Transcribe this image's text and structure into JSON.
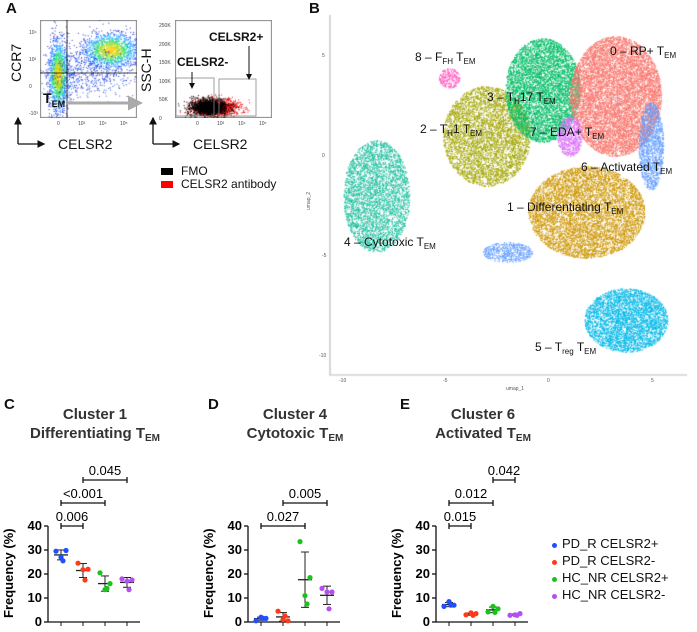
{
  "panels": {
    "A": "A",
    "B": "B",
    "C": "C",
    "D": "D",
    "E": "E"
  },
  "panelA": {
    "plot1": {
      "xlabel": "CELSR2",
      "ylabel": "CCR7",
      "gate_label": "T",
      "gate_sub": "EM",
      "xticks": [
        "0",
        "10³",
        "10⁴",
        "10⁵"
      ],
      "yticks": [
        "10⁴",
        "10³",
        "0",
        "-10³"
      ]
    },
    "plot2": {
      "xlabel": "CELSR2",
      "ylabel": "SSC-H",
      "gate_neg": "CELSR2-",
      "gate_pos": "CELSR2+",
      "xticks": [
        "0",
        "10³",
        "10⁴",
        "10⁵"
      ],
      "yticks": [
        "250K",
        "200K",
        "150K",
        "100K",
        "50K",
        "0"
      ]
    },
    "legend": [
      {
        "label": "FMO",
        "color": "#000000"
      },
      {
        "label": "CELSR2 antibody",
        "color": "#ff0000"
      }
    ]
  },
  "chart_data": [
    {
      "type": "scatter",
      "name": "UMAP",
      "xlabel": "umap_1",
      "ylabel": "umap_2",
      "xticks": [
        "-10",
        "-5",
        "0",
        "5"
      ],
      "yticks": [
        "5",
        "0",
        "-5",
        "-10"
      ],
      "xlim": [
        -10.4,
        6.5
      ],
      "ylim": [
        -11,
        6.5
      ],
      "clusters": [
        {
          "id": 0,
          "parts": [
            [
              "t",
              "0 – RP+ T"
            ],
            [
              "s",
              "EM"
            ]
          ],
          "color": "#F8766D",
          "center": [
            3.2,
            3.0
          ]
        },
        {
          "id": 1,
          "parts": [
            [
              "t",
              "1 – Differentiating T"
            ],
            [
              "s",
              "EM"
            ]
          ],
          "color": "#CD9600",
          "center": [
            1.8,
            -2.8
          ]
        },
        {
          "id": 2,
          "parts": [
            [
              "t",
              "2 – T"
            ],
            [
              "s",
              "H"
            ],
            [
              "t",
              "1 T"
            ],
            [
              "s",
              "EM"
            ]
          ],
          "color": "#A3A500",
          "center": [
            -3.0,
            1.0
          ]
        },
        {
          "id": 3,
          "parts": [
            [
              "t",
              "3 – T"
            ],
            [
              "s",
              "H"
            ],
            [
              "t",
              "17 T"
            ],
            [
              "s",
              "EM"
            ]
          ],
          "color": "#00BE67",
          "center": [
            -0.3,
            3.3
          ]
        },
        {
          "id": 4,
          "parts": [
            [
              "t",
              "4 – Cytotoxic T"
            ],
            [
              "s",
              "EM"
            ]
          ],
          "color": "#1DBE9E",
          "center": [
            -8.3,
            -2.0
          ]
        },
        {
          "id": 5,
          "parts": [
            [
              "t",
              "5 – T"
            ],
            [
              "s",
              "reg"
            ],
            [
              "t",
              " T"
            ],
            [
              "s",
              "EM"
            ]
          ],
          "color": "#00B8E7",
          "center": [
            3.7,
            -8.2
          ]
        },
        {
          "id": 6,
          "parts": [
            [
              "t",
              "6 – Activated T"
            ],
            [
              "s",
              "EM"
            ]
          ],
          "color": "#619CFF",
          "center": [
            4.9,
            0.5
          ]
        },
        {
          "id": 7,
          "parts": [
            [
              "t",
              "7 – EDA+ T"
            ],
            [
              "s",
              "EM"
            ]
          ],
          "color": "#DB72FB",
          "center": [
            1.0,
            1.0
          ]
        },
        {
          "id": 8,
          "parts": [
            [
              "t",
              "8 – F"
            ],
            [
              "s",
              "FH"
            ],
            [
              "t",
              " T"
            ],
            [
              "s",
              "EM"
            ]
          ],
          "color": "#FF61C3",
          "center": [
            -4.8,
            3.9
          ]
        }
      ]
    },
    {
      "type": "scatter",
      "panel": "C",
      "title1": "Cluster 1",
      "title2": "Differentiating T",
      "title_sub": "EM",
      "ylabel": "Frequency (%)",
      "ylim": [
        0,
        40
      ],
      "yticks": [
        "0",
        "10",
        "20",
        "30",
        "40"
      ],
      "groups": [
        [
          29.5,
          29.8,
          27,
          25.5
        ],
        [
          24.5,
          22,
          21.8,
          17.5
        ],
        [
          20.5,
          16,
          13.5,
          14
        ],
        [
          18,
          17.5,
          17,
          13.5
        ]
      ],
      "comparisons": [
        {
          "a": 0,
          "b": 1,
          "p": "0.006"
        },
        {
          "a": 0,
          "b": 2,
          "p": "<0.001"
        },
        {
          "a": 1,
          "b": 3,
          "p": "0.045"
        }
      ]
    },
    {
      "type": "scatter",
      "panel": "D",
      "title1": "Cluster 4",
      "title2": "Cytotoxic T",
      "title_sub": "EM",
      "ylabel": "Frequency (%)",
      "ylim": [
        0,
        40
      ],
      "yticks": [
        "0",
        "10",
        "20",
        "30",
        "40"
      ],
      "groups": [
        [
          0.5,
          1.5,
          2,
          1.5
        ],
        [
          4.5,
          0.5,
          1,
          2.5
        ],
        [
          33.5,
          18.5,
          11,
          7.5
        ],
        [
          14,
          12.5,
          12.5,
          5.5
        ]
      ],
      "comparisons": [
        {
          "a": 0,
          "b": 2,
          "p": "0.027"
        },
        {
          "a": 1,
          "b": 3,
          "p": "0.005"
        }
      ]
    },
    {
      "type": "scatter",
      "panel": "E",
      "title1": "Cluster 6",
      "title2": "Activated T",
      "title_sub": "EM",
      "ylabel": "Frequency (%)",
      "ylim": [
        0,
        40
      ],
      "yticks": [
        "0",
        "10",
        "20",
        "30",
        "40"
      ],
      "groups": [
        [
          6.5,
          7,
          8.5,
          7
        ],
        [
          3,
          3.5,
          3.8,
          2.8
        ],
        [
          4.2,
          5.5,
          6.5,
          4
        ],
        [
          2.8,
          3.5,
          3,
          2.8
        ]
      ],
      "comparisons": [
        {
          "a": 0,
          "b": 1,
          "p": "0.015"
        },
        {
          "a": 0,
          "b": 2,
          "p": "0.012"
        },
        {
          "a": 2,
          "b": 3,
          "p": "0.042"
        }
      ]
    }
  ],
  "legend": [
    {
      "label": "PD_R CELSR2+",
      "color": "#1f4fff"
    },
    {
      "label": "PD_R CELSR2-",
      "color": "#ff3a1a"
    },
    {
      "label": "HC_NR CELSR2+",
      "color": "#19c419"
    },
    {
      "label": "HC_NR CELSR2-",
      "color": "#b44ff0"
    }
  ]
}
